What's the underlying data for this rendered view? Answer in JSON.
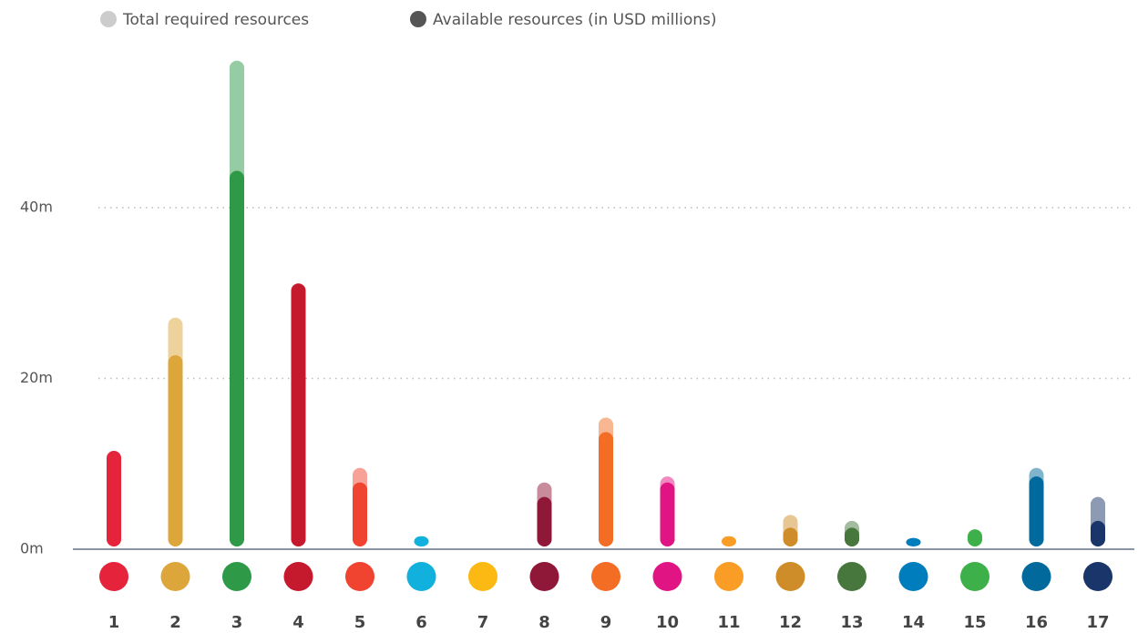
{
  "chart_data": {
    "type": "bar",
    "categories": [
      "1",
      "2",
      "3",
      "4",
      "5",
      "6",
      "7",
      "8",
      "9",
      "10",
      "11",
      "12",
      "13",
      "14",
      "15",
      "16",
      "17"
    ],
    "colors": [
      "#e5243b",
      "#dda63a",
      "#2e9a48",
      "#c5192d",
      "#f04330",
      "#11b0dd",
      "#fcb813",
      "#8f1838",
      "#f36d25",
      "#e11484",
      "#f99d26",
      "#cf8d2a",
      "#48773e",
      "#007dbc",
      "#3eb049",
      "#02699c",
      "#19356a"
    ],
    "series": [
      {
        "name": "Total required resources",
        "color": "#cccccc",
        "values": [
          11.2,
          26.8,
          56.9,
          30.8,
          9.2,
          1.2,
          0,
          7.5,
          15.1,
          8.2,
          1.2,
          3.7,
          3,
          1,
          2,
          9.2,
          5.8
        ]
      },
      {
        "name": "Available resources (in USD millions)",
        "color": "#555555",
        "values": [
          11.2,
          22.4,
          44,
          30.8,
          7.5,
          1.2,
          0,
          5.8,
          13.4,
          7.5,
          1.2,
          2.2,
          2.2,
          1,
          2,
          8.2,
          3
        ]
      }
    ],
    "ylim": [
      0,
      60
    ],
    "yticks": [
      {
        "value": 0,
        "label": "0m"
      },
      {
        "value": 20,
        "label": "20m"
      },
      {
        "value": 40,
        "label": "40m"
      }
    ],
    "grid": true
  }
}
